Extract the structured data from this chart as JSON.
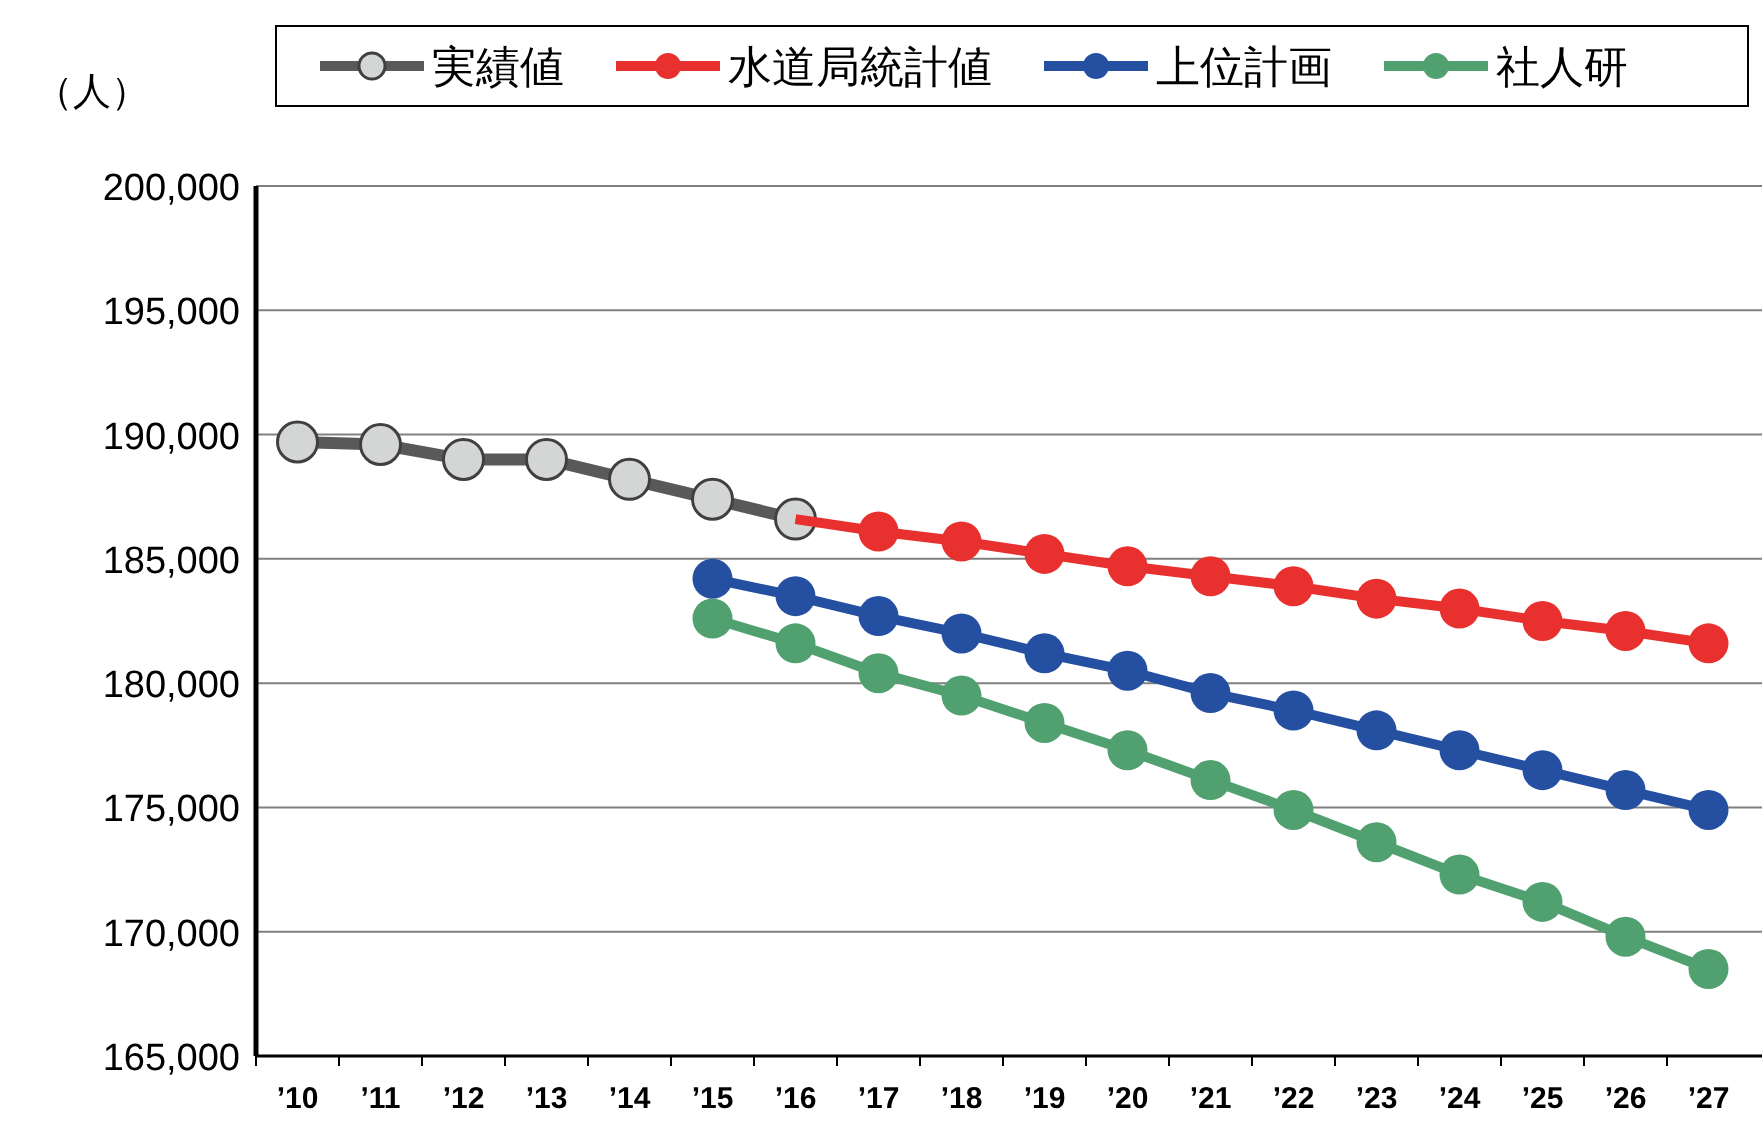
{
  "chart_data": {
    "type": "line",
    "ylabel": "（人）",
    "categories": [
      "’10",
      "’11",
      "’12",
      "’13",
      "’14",
      "’15",
      "’16",
      "’17",
      "’18",
      "’19",
      "’20",
      "’21",
      "’22",
      "’23",
      "’24",
      "’25",
      "’26",
      "’27"
    ],
    "series": [
      {
        "name": "実績値",
        "color": "#595959",
        "values": [
          189700,
          189600,
          189000,
          189000,
          188200,
          187400,
          186600,
          null,
          null,
          null,
          null,
          null,
          null,
          null,
          null,
          null,
          null,
          null
        ]
      },
      {
        "name": "水道局統計値",
        "color": "#e8302e",
        "values": [
          null,
          null,
          null,
          null,
          null,
          null,
          186600,
          186100,
          185700,
          185200,
          184700,
          184300,
          183900,
          183400,
          183000,
          182500,
          182100,
          181600
        ]
      },
      {
        "name": "上位計画",
        "color": "#2550a2",
        "values": [
          null,
          null,
          null,
          null,
          null,
          184200,
          183500,
          182700,
          182000,
          181200,
          180500,
          179600,
          178900,
          178100,
          177300,
          176500,
          175700,
          174900
        ]
      },
      {
        "name": "社人研",
        "color": "#50a070",
        "values": [
          null,
          null,
          null,
          null,
          null,
          182600,
          181600,
          180400,
          179500,
          178400,
          177300,
          176100,
          174900,
          173600,
          172300,
          171200,
          169800,
          168500
        ]
      }
    ],
    "ylim": [
      165000,
      200000
    ],
    "yticks": [
      {
        "value": 165000,
        "label": "165,000"
      },
      {
        "value": 170000,
        "label": "170,000"
      },
      {
        "value": 175000,
        "label": "175,000"
      },
      {
        "value": 180000,
        "label": "180,000"
      },
      {
        "value": 185000,
        "label": "185,000"
      },
      {
        "value": 190000,
        "label": "190,000"
      },
      {
        "value": 195000,
        "label": "195,000"
      },
      {
        "value": 200000,
        "label": "200,000"
      }
    ],
    "grid": "y",
    "legend": "top",
    "marker": "circle",
    "line_style": "solid"
  }
}
